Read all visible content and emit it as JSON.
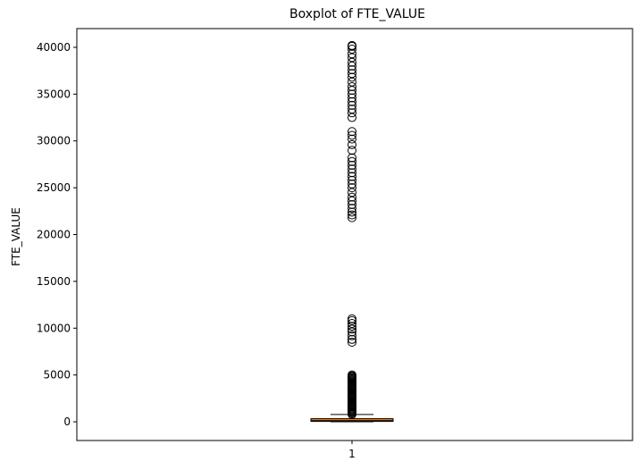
{
  "chart_data": {
    "type": "boxplot",
    "title": "Boxplot of FTE_VALUE",
    "xlabel": "",
    "ylabel": "FTE_VALUE",
    "categories": [
      "1"
    ],
    "y_ticks": [
      0,
      5000,
      10000,
      15000,
      20000,
      25000,
      30000,
      35000,
      40000
    ],
    "ylim": [
      -2000,
      42000
    ],
    "grid": false,
    "series": [
      {
        "box": {
          "whisker_low": 0,
          "q1": 40,
          "median": 120,
          "q3": 330,
          "whisker_high": 780
        },
        "outliers": [
          800,
          900,
          1000,
          1100,
          1200,
          1300,
          1400,
          1500,
          1600,
          1700,
          1800,
          1900,
          2000,
          2100,
          2200,
          2300,
          2400,
          2500,
          2600,
          2700,
          2800,
          2900,
          3000,
          3100,
          3200,
          3300,
          3400,
          3500,
          3600,
          3700,
          3800,
          3900,
          4000,
          4100,
          4200,
          4300,
          4400,
          4500,
          4600,
          4700,
          4800,
          4900,
          5000,
          8500,
          8800,
          9200,
          9600,
          9900,
          10200,
          10500,
          10800,
          11000,
          21800,
          22100,
          22400,
          22800,
          23200,
          23600,
          24000,
          24500,
          25000,
          25400,
          25800,
          26200,
          26600,
          27000,
          27400,
          27800,
          28200,
          29000,
          29600,
          30200,
          30600,
          31000,
          32500,
          33000,
          33400,
          33800,
          34200,
          34600,
          35000,
          35400,
          35800,
          36300,
          36800,
          37200,
          37600,
          38000,
          38400,
          38900,
          39300,
          39800,
          40100,
          40200
        ]
      }
    ]
  },
  "colors": {
    "box_fill": "#ff7f0e",
    "median_line": "#ff7f0e",
    "outline": "#000000",
    "background": "#ffffff"
  }
}
